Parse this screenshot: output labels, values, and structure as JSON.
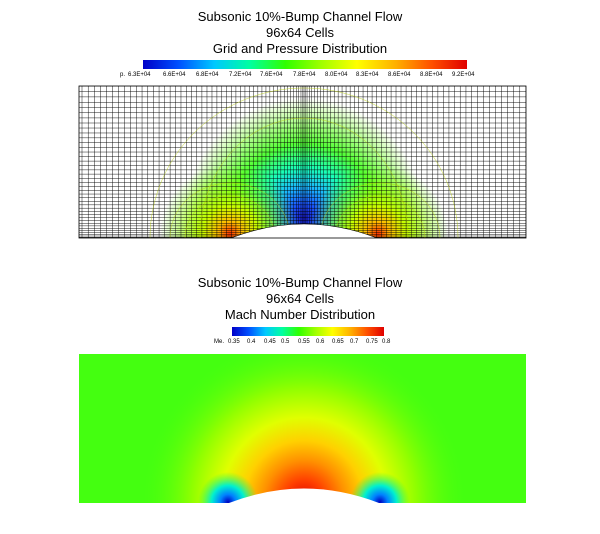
{
  "panels": [
    {
      "title_lines": [
        "Subsonic 10%-Bump Channel Flow",
        "96x64 Cells",
        "Grid and Pressure Distribution"
      ],
      "colorbar": {
        "variable": "p.",
        "ticks": [
          "6.3E+04",
          "6.6E+04",
          "6.8E+04",
          "7.2E+04",
          "7.6E+04",
          "7.8E+04",
          "8.0E+04",
          "8.3E+04",
          "8.6E+04",
          "8.8E+04",
          "9.2E+04"
        ]
      }
    },
    {
      "title_lines": [
        "Subsonic 10%-Bump Channel Flow",
        "96x64 Cells",
        "Mach Number Distribution"
      ],
      "colorbar": {
        "variable": "Me.",
        "ticks": [
          "0.35",
          "0.4",
          "0.45",
          "0.5",
          "0.55",
          "0.6",
          "0.65",
          "0.7",
          "0.75",
          "0.8"
        ]
      }
    }
  ],
  "colormap": [
    "#0000c8",
    "#0050ff",
    "#00c8ff",
    "#00ffa0",
    "#30ff00",
    "#a0ff00",
    "#ffff00",
    "#ffb000",
    "#ff5000",
    "#e00000"
  ]
}
